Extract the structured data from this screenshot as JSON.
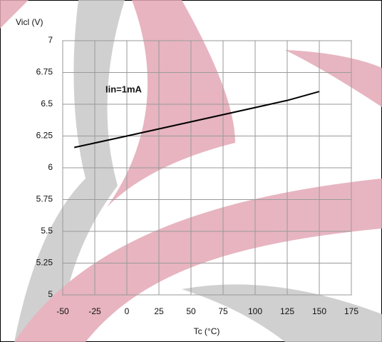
{
  "chart_data": {
    "type": "line",
    "x": [
      -41,
      0,
      125,
      150
    ],
    "series": [
      {
        "color": "#000000",
        "values": [
          6.16,
          6.25,
          6.53,
          6.6
        ]
      }
    ],
    "xlim": [
      -50,
      175
    ],
    "xticks": [
      -50,
      -25,
      0,
      25,
      50,
      75,
      100,
      125,
      150,
      175
    ],
    "ylim": [
      5,
      7
    ],
    "yticks": [
      5,
      5.25,
      5.5,
      5.75,
      6,
      6.25,
      6.5,
      6.75,
      7
    ],
    "grid": true,
    "y_label": "Vicl (V)",
    "x_label": "Tc (°C)",
    "annotation": "Iin=1mA"
  }
}
